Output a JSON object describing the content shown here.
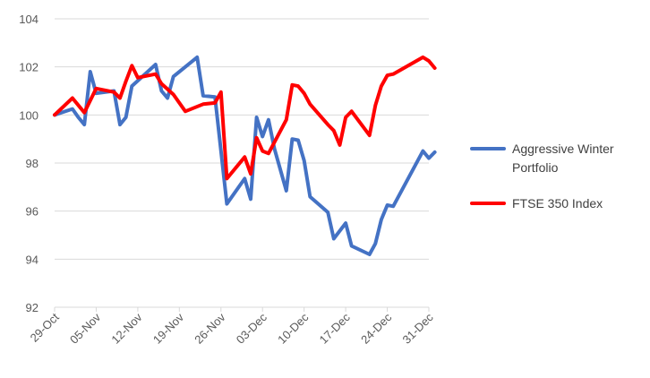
{
  "chart_data": {
    "type": "line",
    "title": "",
    "xlabel": "",
    "ylabel": "",
    "x_range": [
      "2018-10-29",
      "2018-12-31"
    ],
    "ylim": [
      92,
      104
    ],
    "y_ticks": [
      "92",
      "94",
      "96",
      "98",
      "100",
      "102",
      "104"
    ],
    "x_ticks": [
      "29-Oct",
      "05-Nov",
      "12-Nov",
      "19-Nov",
      "26-Nov",
      "03-Dec",
      "10-Dec",
      "17-Dec",
      "24-Dec",
      "31-Dec"
    ],
    "grid": "horizontal",
    "legend_position": "right",
    "series": [
      {
        "name": "Aggressive Winter Portfolio",
        "color": "#4472C4",
        "legend_lines": [
          "Aggressive Winter",
          "Portfolio"
        ],
        "points": [
          [
            "2018-10-29",
            100.0
          ],
          [
            "2018-11-01",
            100.25
          ],
          [
            "2018-11-02",
            99.9
          ],
          [
            "2018-11-03",
            99.6
          ],
          [
            "2018-11-04",
            101.8
          ],
          [
            "2018-11-05",
            100.9
          ],
          [
            "2018-11-08",
            101.0
          ],
          [
            "2018-11-09",
            99.6
          ],
          [
            "2018-11-10",
            99.9
          ],
          [
            "2018-11-11",
            101.2
          ],
          [
            "2018-11-15",
            102.1
          ],
          [
            "2018-11-16",
            101.0
          ],
          [
            "2018-11-17",
            100.7
          ],
          [
            "2018-11-18",
            101.6
          ],
          [
            "2018-11-22",
            102.4
          ],
          [
            "2018-11-23",
            100.8
          ],
          [
            "2018-11-25",
            100.75
          ],
          [
            "2018-11-27",
            96.3
          ],
          [
            "2018-11-30",
            97.35
          ],
          [
            "2018-12-01",
            96.5
          ],
          [
            "2018-12-02",
            99.9
          ],
          [
            "2018-12-03",
            99.1
          ],
          [
            "2018-12-04",
            99.8
          ],
          [
            "2018-12-05",
            98.6
          ],
          [
            "2018-12-07",
            96.85
          ],
          [
            "2018-12-08",
            99.0
          ],
          [
            "2018-12-09",
            98.95
          ],
          [
            "2018-12-10",
            98.1
          ],
          [
            "2018-12-11",
            96.6
          ],
          [
            "2018-12-14",
            95.95
          ],
          [
            "2018-12-15",
            94.85
          ],
          [
            "2018-12-17",
            95.5
          ],
          [
            "2018-12-18",
            94.55
          ],
          [
            "2018-12-21",
            94.2
          ],
          [
            "2018-12-22",
            94.65
          ],
          [
            "2018-12-23",
            95.65
          ],
          [
            "2018-12-24",
            96.25
          ],
          [
            "2018-12-25",
            96.2
          ],
          [
            "2018-12-30",
            98.5
          ],
          [
            "2018-12-31",
            98.2
          ],
          [
            "2019-01-01",
            98.45
          ]
        ]
      },
      {
        "name": "FTSE 350 Index",
        "color": "#FF0000",
        "legend_lines": [
          "FTSE 350 Index"
        ],
        "points": [
          [
            "2018-10-29",
            100.0
          ],
          [
            "2018-11-01",
            100.7
          ],
          [
            "2018-11-03",
            100.1
          ],
          [
            "2018-11-05",
            101.1
          ],
          [
            "2018-11-08",
            100.95
          ],
          [
            "2018-11-09",
            100.7
          ],
          [
            "2018-11-10",
            101.4
          ],
          [
            "2018-11-11",
            102.05
          ],
          [
            "2018-11-12",
            101.55
          ],
          [
            "2018-11-15",
            101.7
          ],
          [
            "2018-11-16",
            101.3
          ],
          [
            "2018-11-18",
            100.85
          ],
          [
            "2018-11-20",
            100.15
          ],
          [
            "2018-11-23",
            100.45
          ],
          [
            "2018-11-25",
            100.5
          ],
          [
            "2018-11-26",
            100.95
          ],
          [
            "2018-11-27",
            97.35
          ],
          [
            "2018-11-30",
            98.25
          ],
          [
            "2018-12-01",
            97.55
          ],
          [
            "2018-12-02",
            99.05
          ],
          [
            "2018-12-03",
            98.5
          ],
          [
            "2018-12-04",
            98.4
          ],
          [
            "2018-12-07",
            99.8
          ],
          [
            "2018-12-08",
            101.25
          ],
          [
            "2018-12-09",
            101.2
          ],
          [
            "2018-12-10",
            100.9
          ],
          [
            "2018-12-11",
            100.45
          ],
          [
            "2018-12-14",
            99.6
          ],
          [
            "2018-12-15",
            99.35
          ],
          [
            "2018-12-16",
            98.75
          ],
          [
            "2018-12-17",
            99.9
          ],
          [
            "2018-12-18",
            100.15
          ],
          [
            "2018-12-21",
            99.15
          ],
          [
            "2018-12-22",
            100.4
          ],
          [
            "2018-12-23",
            101.2
          ],
          [
            "2018-12-24",
            101.65
          ],
          [
            "2018-12-25",
            101.7
          ],
          [
            "2018-12-30",
            102.4
          ],
          [
            "2018-12-31",
            102.25
          ],
          [
            "2019-01-01",
            101.95
          ]
        ]
      }
    ]
  }
}
